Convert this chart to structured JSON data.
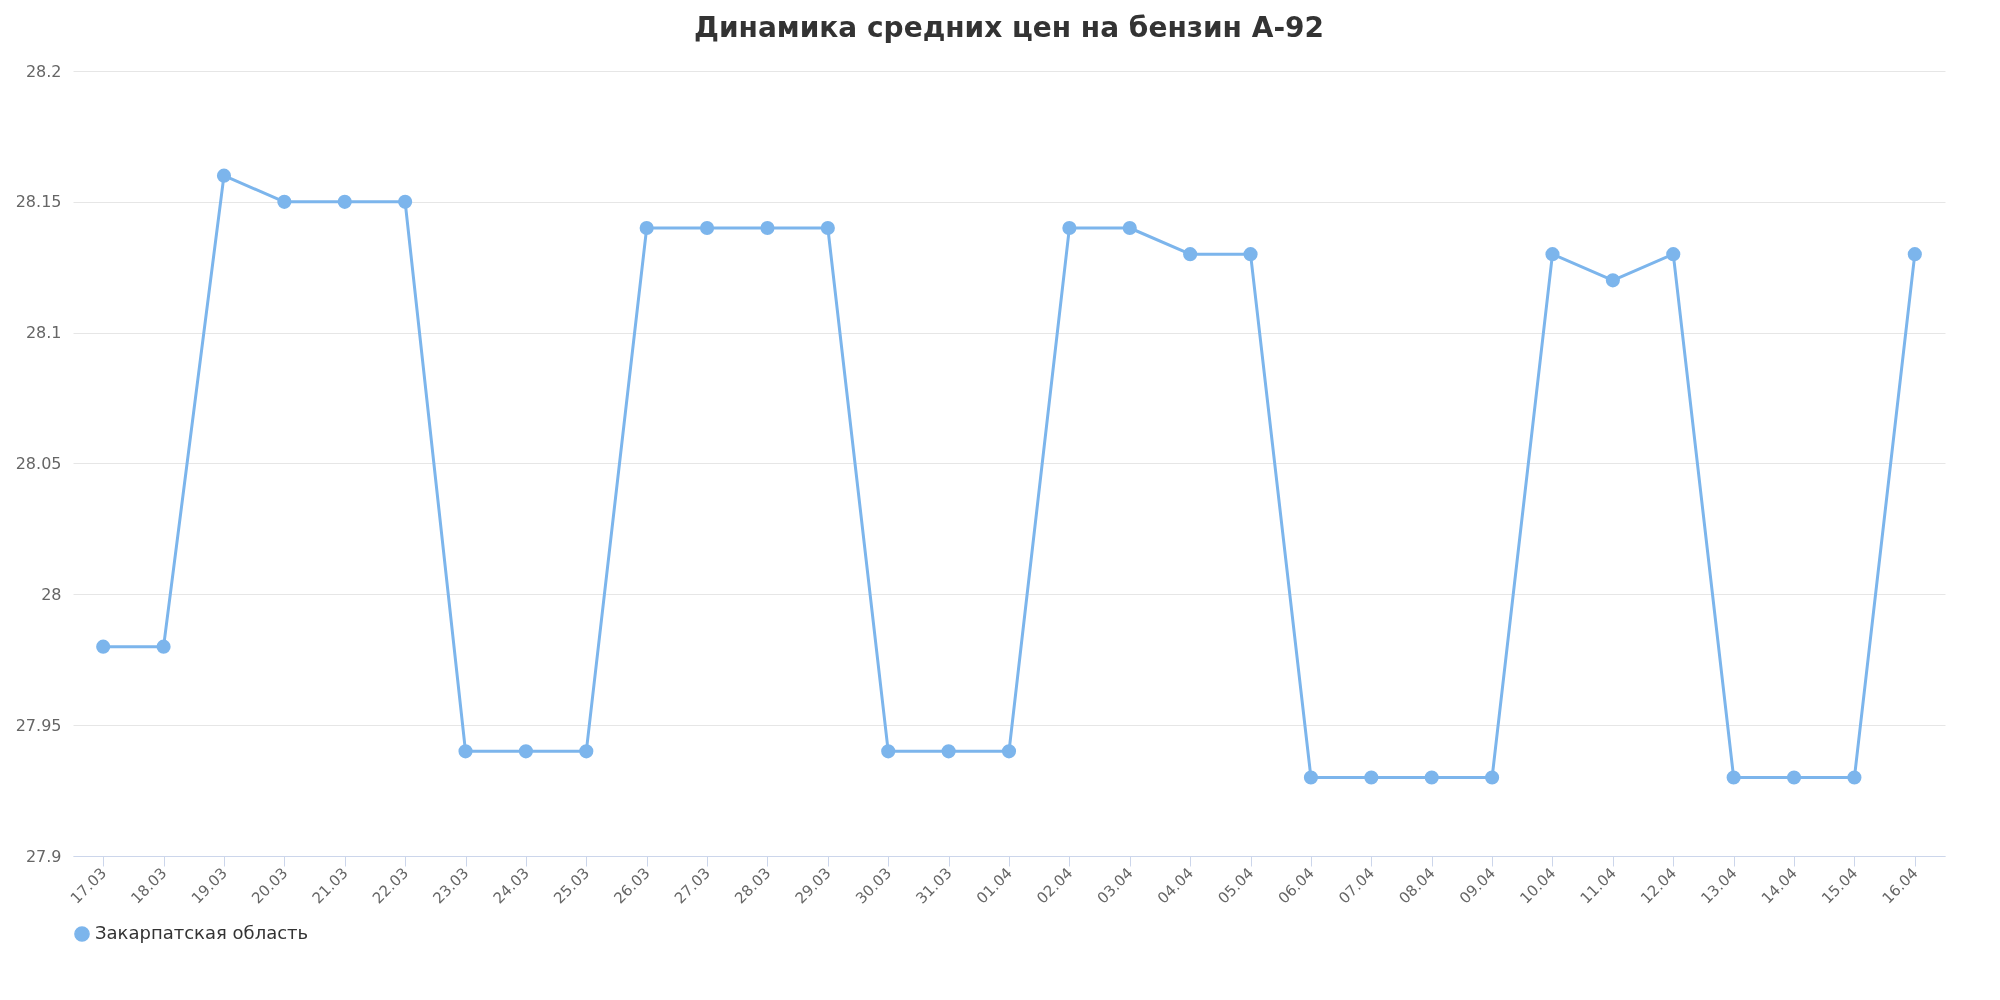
{
  "chart_data": {
    "type": "line",
    "title": "Динамика средних цен на бензин А-92",
    "categories": [
      "17.03",
      "18.03",
      "19.03",
      "20.03",
      "21.03",
      "22.03",
      "23.03",
      "24.03",
      "25.03",
      "26.03",
      "27.03",
      "28.03",
      "29.03",
      "30.03",
      "31.03",
      "01.04",
      "02.04",
      "03.04",
      "04.04",
      "05.04",
      "06.04",
      "07.04",
      "08.04",
      "09.04",
      "10.04",
      "11.04",
      "12.04",
      "13.04",
      "14.04",
      "15.04",
      "16.04"
    ],
    "series": [
      {
        "name": "Закарпатская область",
        "color": "#7cb5ec",
        "values": [
          27.98,
          27.98,
          28.16,
          28.15,
          28.15,
          28.15,
          27.94,
          27.94,
          27.94,
          28.14,
          28.14,
          28.14,
          28.14,
          27.94,
          27.94,
          27.94,
          28.14,
          28.14,
          28.13,
          28.13,
          27.93,
          27.93,
          27.93,
          27.93,
          28.13,
          28.12,
          28.13,
          27.93,
          27.93,
          27.93,
          28.13
        ]
      }
    ],
    "ylim": [
      27.9,
      28.2
    ],
    "yticks": [
      27.9,
      27.95,
      28,
      28.05,
      28.1,
      28.15,
      28.2
    ],
    "grid": "y",
    "legend": "bottom",
    "marker": "circle",
    "line_style": "solid"
  }
}
